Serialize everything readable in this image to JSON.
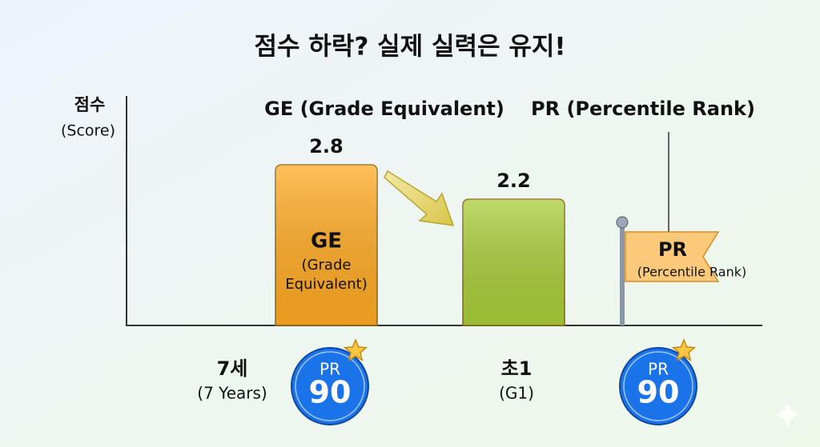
{
  "chart_data": {
    "type": "bar",
    "title": "점수 하락? 실제 실력은 유지!",
    "ylabel": "점수",
    "ylabel_sub": "(Score)",
    "categories": [
      "7세",
      "초1"
    ],
    "category_subs": [
      "(7 Years)",
      "(G1)"
    ],
    "values": [
      2.8,
      2.2
    ],
    "colors": [
      "#ffaa24",
      "#a9cd3a"
    ],
    "ylim": [
      0,
      4
    ],
    "bar_text": {
      "title": "GE",
      "lines": [
        "(Grade",
        "Equivalent)"
      ]
    },
    "headers": [
      "GE (Grade Equivalent)",
      "PR (Percentile Rank)"
    ],
    "flag": {
      "title": "PR",
      "subtitle": "(Percentile Rank)"
    },
    "badges": [
      {
        "label": "PR",
        "value": 90
      },
      {
        "label": "PR",
        "value": 90
      }
    ]
  }
}
